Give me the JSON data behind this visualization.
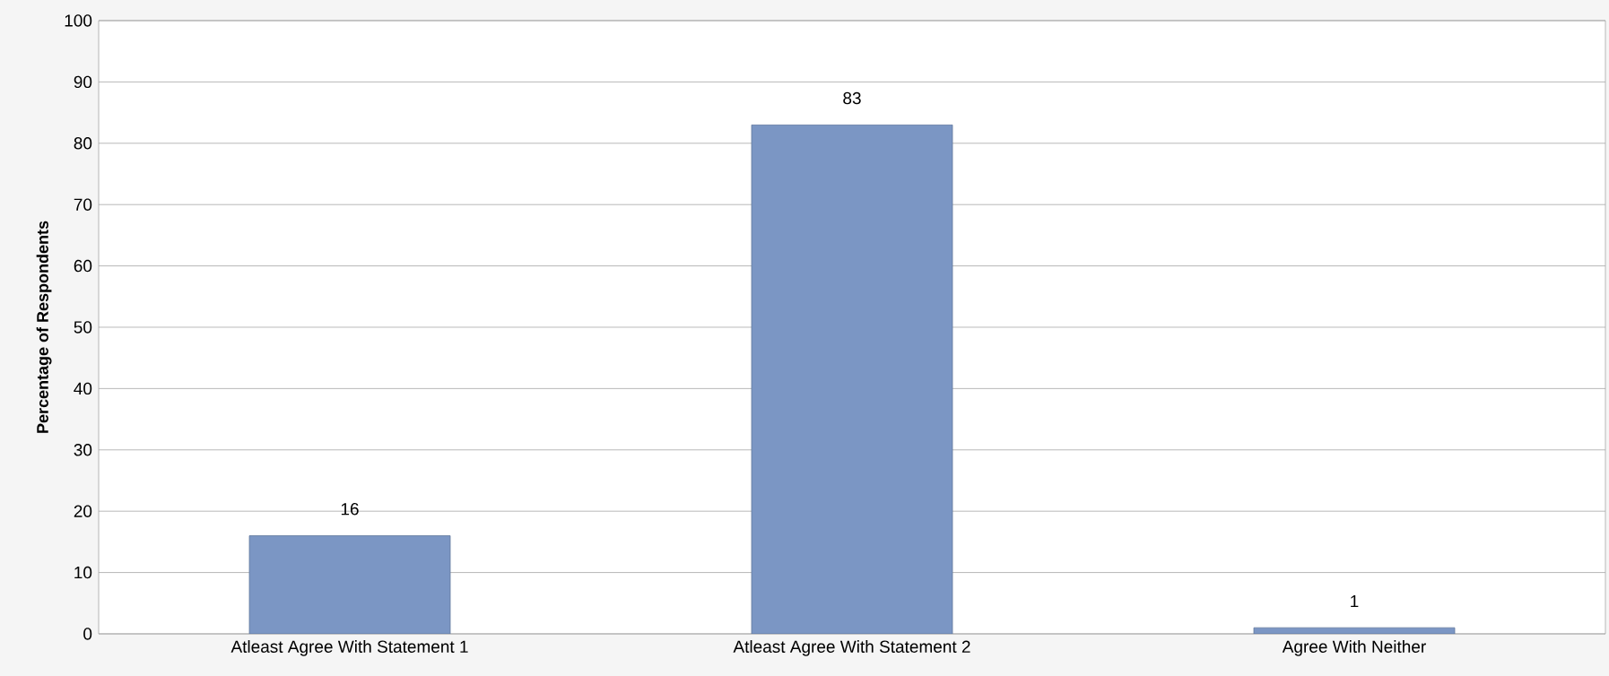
{
  "chart_data": {
    "type": "bar",
    "ylabel": "Percentage of Respondents",
    "categories": [
      "Atleast Agree With Statement 1",
      "Atleast Agree With Statement 2",
      "Agree With Neither"
    ],
    "values": [
      16,
      83,
      1
    ],
    "color": "#7b96c4",
    "ylim": [
      0,
      100
    ],
    "yticks": [
      0,
      10,
      20,
      30,
      40,
      50,
      60,
      70,
      80,
      90,
      100
    ],
    "grid": "y",
    "data_labels": true
  }
}
